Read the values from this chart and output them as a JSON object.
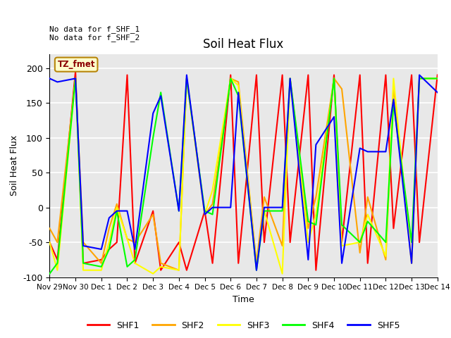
{
  "title": "Soil Heat Flux",
  "ylabel": "Soil Heat Flux",
  "xlabel": "Time",
  "annotation_text": "No data for f_SHF_1\nNo data for f_SHF_2",
  "legend_label": "TZ_fmet",
  "ylim": [
    -100,
    220
  ],
  "xlim": [
    29,
    44
  ],
  "series": {
    "SHF1": {
      "color": "red",
      "x": [
        29.0,
        29.3,
        30.0,
        30.3,
        31.0,
        31.3,
        31.6,
        32.0,
        32.3,
        33.0,
        33.3,
        34.0,
        34.3,
        35.0,
        35.3,
        36.0,
        36.3,
        37.0,
        37.3,
        38.0,
        38.3,
        39.0,
        39.3,
        40.0,
        40.3,
        41.0,
        41.3,
        42.0,
        42.3,
        43.0,
        43.3,
        44.0
      ],
      "y": [
        -50,
        -75,
        195,
        -80,
        -75,
        -60,
        -50,
        190,
        -80,
        -5,
        -90,
        -50,
        -90,
        -5,
        -80,
        190,
        -80,
        190,
        -50,
        190,
        -50,
        190,
        -90,
        190,
        -50,
        190,
        -80,
        190,
        -30,
        190,
        -50,
        190
      ]
    },
    "SHF2": {
      "color": "orange",
      "x": [
        29.0,
        29.3,
        30.0,
        30.3,
        31.0,
        31.3,
        31.6,
        32.0,
        32.3,
        33.0,
        33.3,
        34.0,
        34.3,
        35.0,
        35.3,
        36.0,
        36.3,
        37.0,
        37.3,
        38.0,
        38.3,
        39.0,
        39.3,
        40.0,
        40.3,
        41.0,
        41.3,
        42.0,
        42.3,
        43.0,
        43.3,
        44.0
      ],
      "y": [
        -30,
        -50,
        185,
        -50,
        -80,
        -30,
        5,
        -45,
        -50,
        -10,
        -80,
        -90,
        185,
        -10,
        5,
        185,
        180,
        -80,
        15,
        -55,
        185,
        -30,
        15,
        185,
        170,
        -65,
        15,
        -75,
        175,
        -80,
        185,
        185
      ]
    },
    "SHF3": {
      "color": "yellow",
      "x": [
        29.0,
        29.3,
        30.0,
        30.3,
        31.0,
        31.3,
        31.6,
        32.0,
        32.3,
        33.0,
        33.3,
        34.0,
        34.3,
        35.0,
        35.3,
        36.0,
        36.3,
        37.0,
        37.3,
        38.0,
        38.3,
        39.0,
        39.3,
        40.0,
        40.3,
        41.0,
        41.3,
        42.0,
        42.3,
        43.0,
        43.3,
        44.0
      ],
      "y": [
        -50,
        -90,
        185,
        -90,
        -90,
        -50,
        0,
        -45,
        -80,
        -95,
        -85,
        -90,
        185,
        -10,
        25,
        185,
        175,
        -85,
        -5,
        -95,
        185,
        -50,
        -10,
        185,
        -55,
        -50,
        -10,
        -70,
        185,
        -80,
        185,
        185
      ]
    },
    "SHF4": {
      "color": "lime",
      "x": [
        29.0,
        29.3,
        30.0,
        30.3,
        31.0,
        31.3,
        31.6,
        32.0,
        32.3,
        33.0,
        33.3,
        34.0,
        34.3,
        35.0,
        35.3,
        36.0,
        36.3,
        37.0,
        37.3,
        38.0,
        38.3,
        39.0,
        39.3,
        40.0,
        40.3,
        41.0,
        41.3,
        42.0,
        42.3,
        43.0,
        43.3,
        44.0
      ],
      "y": [
        -95,
        -80,
        185,
        -80,
        -85,
        -60,
        -5,
        -85,
        -75,
        100,
        165,
        -5,
        185,
        -5,
        -10,
        185,
        160,
        -90,
        -5,
        -5,
        185,
        -20,
        -25,
        185,
        -25,
        -50,
        -20,
        -50,
        150,
        -50,
        185,
        185
      ]
    },
    "SHF5": {
      "color": "blue",
      "x": [
        29.0,
        29.3,
        30.0,
        30.3,
        31.0,
        31.3,
        31.6,
        32.0,
        32.3,
        33.0,
        33.3,
        34.0,
        34.3,
        35.0,
        35.3,
        36.0,
        36.3,
        37.0,
        37.3,
        38.0,
        38.3,
        39.0,
        39.3,
        40.0,
        40.3,
        41.0,
        41.3,
        42.0,
        42.3,
        43.0,
        43.3,
        44.0
      ],
      "y": [
        185,
        180,
        185,
        -55,
        -60,
        -15,
        -5,
        -5,
        -60,
        135,
        160,
        -5,
        190,
        -10,
        0,
        0,
        165,
        -90,
        0,
        0,
        185,
        -75,
        90,
        130,
        -80,
        85,
        80,
        80,
        155,
        -80,
        190,
        165
      ]
    }
  },
  "xtick_positions": [
    29,
    30,
    31,
    32,
    33,
    34,
    35,
    36,
    37,
    38,
    39,
    40,
    41,
    42,
    43,
    44
  ],
  "xtick_labels": [
    "Nov 29",
    "Nov 30",
    "Dec 1",
    "Dec 2",
    "Dec 3",
    "Dec 4",
    "Dec 5",
    "Dec 6",
    "Dec 7",
    "Dec 8",
    "Dec 9",
    "Dec 10",
    "Dec 11",
    "Dec 12",
    "Dec 13",
    "Dec 14"
  ],
  "ytick_positions": [
    -100,
    -50,
    0,
    50,
    100,
    150,
    200
  ],
  "legend_names": [
    "SHF1",
    "SHF2",
    "SHF3",
    "SHF4",
    "SHF5"
  ],
  "legend_colors": [
    "red",
    "orange",
    "yellow",
    "lime",
    "blue"
  ],
  "plot_bg": "#e8e8e8",
  "linewidth": 1.5,
  "grid_color": "white"
}
